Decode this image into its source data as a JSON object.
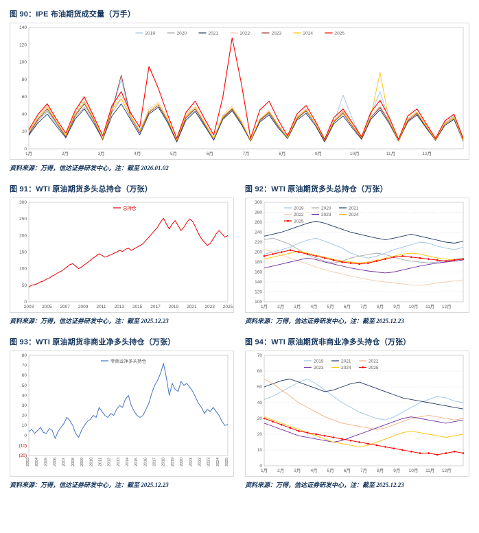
{
  "page": {
    "background": "#FFFFFF",
    "title_color": "#17375E",
    "source_color": "#17375E",
    "frame_color": "#BFBFBF",
    "grid_color": "#D9D9D9",
    "axis_label_color": "#595959",
    "negative_label_color": "#C00000"
  },
  "chart_data": [
    {
      "id": "fig90",
      "type": "line",
      "title": "图 90：IPE 布油期货成交量（万手）",
      "source_note": "资料来源：万得，信达证券研发中心，注：截至 2026.01.02",
      "xlabel": "",
      "ylabel": "",
      "ylim": [
        0,
        140
      ],
      "yticks": [
        0,
        20,
        40,
        60,
        80,
        100,
        120,
        140
      ],
      "x_tick_labels": [
        "1月",
        "2月",
        "3月",
        "4月",
        "5月",
        "6月",
        "7月",
        "8月",
        "9月",
        "10月",
        "11月",
        "12月"
      ],
      "x_tick_mode": "start",
      "rotate_x_labels": false,
      "grid": false,
      "legend": {
        "align": "center",
        "cols": 7,
        "item_width": 46
      },
      "series": [
        {
          "name": "2019",
          "color": "#9DC3E6",
          "values": [
            18,
            35,
            42,
            28,
            15,
            38,
            55,
            33,
            10,
            45,
            80,
            38,
            22,
            40,
            48,
            30,
            8,
            35,
            44,
            26,
            12,
            38,
            46,
            30,
            9,
            33,
            40,
            25,
            14,
            36,
            43,
            28,
            10,
            30,
            62,
            35,
            12,
            40,
            66,
            32,
            9,
            34,
            42,
            26,
            11,
            30,
            38,
            12
          ]
        },
        {
          "name": "2020",
          "color": "#A6A6A6",
          "values": [
            15,
            32,
            44,
            30,
            12,
            36,
            48,
            32,
            10,
            42,
            58,
            36,
            18,
            44,
            52,
            34,
            9,
            38,
            46,
            28,
            11,
            35,
            45,
            29,
            10,
            32,
            41,
            26,
            13,
            34,
            44,
            30,
            9,
            31,
            43,
            27,
            12,
            36,
            47,
            31,
            10,
            33,
            40,
            25,
            10,
            28,
            35,
            10
          ]
        },
        {
          "name": "2021",
          "color": "#203864",
          "values": [
            16,
            30,
            40,
            26,
            13,
            34,
            46,
            30,
            11,
            38,
            52,
            34,
            16,
            40,
            48,
            31,
            8,
            33,
            43,
            27,
            10,
            34,
            44,
            28,
            9,
            31,
            39,
            24,
            12,
            33,
            41,
            27,
            8,
            29,
            38,
            24,
            11,
            34,
            45,
            29,
            9,
            31,
            39,
            24,
            10,
            27,
            34,
            9
          ]
        },
        {
          "name": "2022",
          "color": "#F8CBAD",
          "values": [
            20,
            38,
            50,
            32,
            16,
            42,
            58,
            36,
            12,
            48,
            62,
            40,
            20,
            46,
            54,
            36,
            10,
            40,
            50,
            31,
            13,
            39,
            49,
            32,
            10,
            35,
            44,
            28,
            14,
            37,
            46,
            30,
            10,
            33,
            44,
            28,
            13,
            38,
            50,
            33,
            10,
            35,
            43,
            27,
            11,
            30,
            37,
            11
          ]
        },
        {
          "name": "2023",
          "color": "#943634",
          "values": [
            17,
            34,
            46,
            30,
            14,
            38,
            52,
            34,
            11,
            44,
            85,
            38,
            19,
            42,
            50,
            33,
            9,
            36,
            46,
            29,
            12,
            36,
            46,
            30,
            10,
            33,
            42,
            26,
            13,
            35,
            44,
            29,
            9,
            31,
            41,
            26,
            12,
            36,
            48,
            31,
            9,
            32,
            41,
            25,
            10,
            29,
            36,
            10
          ]
        },
        {
          "name": "2024",
          "color": "#FFC000",
          "values": [
            19,
            36,
            48,
            31,
            15,
            40,
            54,
            35,
            12,
            46,
            58,
            38,
            20,
            44,
            52,
            34,
            10,
            38,
            48,
            30,
            12,
            37,
            47,
            31,
            10,
            34,
            43,
            27,
            13,
            36,
            45,
            29,
            10,
            32,
            42,
            27,
            13,
            37,
            88,
            32,
            10,
            34,
            42,
            26,
            11,
            29,
            36,
            10
          ]
        },
        {
          "name": "2025",
          "color": "#FF0000",
          "width": 1.1,
          "values": [
            22,
            40,
            52,
            34,
            18,
            44,
            60,
            38,
            15,
            50,
            66,
            42,
            25,
            95,
            70,
            40,
            12,
            42,
            55,
            35,
            16,
            60,
            128,
            75,
            12,
            45,
            55,
            33,
            15,
            40,
            50,
            32,
            11,
            36,
            46,
            30,
            14,
            42,
            56,
            36,
            11,
            38,
            46,
            29,
            12,
            32,
            40,
            12
          ]
        }
      ]
    },
    {
      "id": "fig91",
      "type": "line",
      "title": "图 91：WTI 原油期货多头总持仓（万张）",
      "source_note": "资料来源：万得，信达证券研发中心，注：截至 2025.12.23",
      "xlabel": "",
      "ylabel": "",
      "ylim": [
        0,
        300
      ],
      "yticks": [
        0,
        50,
        100,
        150,
        200,
        250,
        300
      ],
      "x_tick_labels": [
        "2003",
        "2005",
        "2007",
        "2009",
        "2011",
        "2013",
        "2015",
        "2017",
        "2019",
        "2021",
        "2023",
        "2025"
      ],
      "x_tick_mode": "span",
      "rotate_x_labels": false,
      "grid": false,
      "legend": {
        "align": "center",
        "cols": 1,
        "item_width": 44
      },
      "series": [
        {
          "name": "总持仓",
          "color": "#E60000",
          "width": 1.0,
          "label_color": "#E60000",
          "values": [
            45,
            50,
            52,
            55,
            60,
            63,
            68,
            72,
            78,
            82,
            88,
            92,
            98,
            105,
            112,
            115,
            108,
            100,
            105,
            112,
            118,
            125,
            132,
            138,
            145,
            140,
            135,
            138,
            142,
            146,
            150,
            155,
            152,
            158,
            162,
            155,
            160,
            165,
            170,
            175,
            185,
            195,
            205,
            215,
            225,
            240,
            252,
            235,
            220,
            235,
            245,
            230,
            215,
            225,
            240,
            250,
            242,
            225,
            205,
            190,
            180,
            170,
            176,
            190,
            205,
            215,
            205,
            195,
            200
          ]
        }
      ]
    },
    {
      "id": "fig92",
      "type": "line",
      "title": "图 92：WTI 原油期货多头总持仓（万张）",
      "source_note": "资料来源：万得，信达证券研发中心，注：截至 2025.12.23",
      "xlabel": "",
      "ylabel": "",
      "ylim": [
        100,
        300
      ],
      "yticks": [
        100,
        120,
        140,
        160,
        180,
        200,
        220,
        240,
        260,
        280,
        300
      ],
      "x_tick_labels": [
        "1月",
        "2月",
        "3月",
        "4月",
        "5月",
        "6月",
        "7月",
        "8月",
        "9月",
        "10月",
        "11月",
        "12月"
      ],
      "x_tick_mode": "start",
      "rotate_x_labels": false,
      "grid": true,
      "legend": {
        "align": "left",
        "indent": 0.1,
        "cols": 3,
        "item_width": 40
      },
      "series": [
        {
          "name": "2019",
          "color": "#9DC3E6",
          "values": [
            196,
            200,
            205,
            210,
            218,
            224,
            228,
            222,
            215,
            208,
            198,
            192,
            188,
            192,
            198,
            205,
            210,
            215,
            220,
            218,
            212,
            208,
            205,
            210
          ]
        },
        {
          "name": "2020",
          "color": "#A6A6A6",
          "values": [
            225,
            228,
            222,
            215,
            205,
            195,
            188,
            182,
            178,
            182,
            188,
            192,
            195,
            198,
            195,
            190,
            185,
            182,
            180,
            178,
            180,
            183,
            186,
            188
          ]
        },
        {
          "name": "2021",
          "color": "#203864",
          "values": [
            232,
            236,
            240,
            246,
            252,
            258,
            262,
            258,
            252,
            246,
            240,
            236,
            232,
            228,
            225,
            228,
            232,
            236,
            232,
            228,
            224,
            220,
            218,
            222
          ]
        },
        {
          "name": "2022",
          "color": "#F8CBAD",
          "values": [
            205,
            200,
            194,
            188,
            182,
            176,
            170,
            165,
            160,
            156,
            152,
            148,
            145,
            142,
            140,
            138,
            136,
            134,
            133,
            135,
            138,
            140,
            142,
            144
          ]
        },
        {
          "name": "2023",
          "color": "#7030A0",
          "values": [
            168,
            172,
            176,
            180,
            184,
            188,
            185,
            180,
            176,
            172,
            168,
            165,
            162,
            160,
            158,
            160,
            164,
            168,
            172,
            175,
            178,
            180,
            182,
            184
          ]
        },
        {
          "name": "2024",
          "color": "#FFC000",
          "values": [
            186,
            190,
            194,
            198,
            202,
            198,
            194,
            190,
            186,
            182,
            180,
            178,
            180,
            184,
            188,
            192,
            196,
            198,
            196,
            192,
            188,
            186,
            184,
            186
          ]
        },
        {
          "name": "2025",
          "color": "#FF0000",
          "width": 1.0,
          "marker": true,
          "values": [
            192,
            196,
            200,
            204,
            200,
            196,
            192,
            188,
            184,
            180,
            178,
            176,
            178,
            182,
            186,
            190,
            192,
            190,
            188,
            186,
            184,
            182,
            184,
            186
          ]
        }
      ]
    },
    {
      "id": "fig93",
      "type": "line",
      "title": "图 93：WTI 原油期货非商业净多头持仓（万张）",
      "source_note": "资料来源：万得，信达证券研发中心，注：截至 2025.12.23",
      "xlabel": "",
      "ylabel": "",
      "ylim": [
        -20,
        80
      ],
      "yticks": [
        -20,
        -10,
        0,
        10,
        20,
        30,
        40,
        50,
        60,
        70,
        80
      ],
      "x_tick_labels": [
        "2003",
        "2004",
        "2005",
        "2006",
        "2007",
        "2008",
        "2009",
        "2010",
        "2011",
        "2012",
        "2013",
        "2014",
        "2015",
        "2016",
        "2017",
        "2018",
        "2019",
        "2020",
        "2021",
        "2022",
        "2023",
        "2024",
        "2025"
      ],
      "x_tick_mode": "span",
      "rotate_x_labels": true,
      "grid": false,
      "legend": {
        "align": "center",
        "cols": 1,
        "item_width": 80
      },
      "series": [
        {
          "name": "非商业净多头持仓",
          "color": "#4472C4",
          "width": 1.0,
          "values": [
            4,
            6,
            2,
            5,
            8,
            3,
            2,
            7,
            5,
            -3,
            4,
            8,
            12,
            18,
            15,
            10,
            2,
            -2,
            5,
            10,
            14,
            16,
            20,
            18,
            28,
            24,
            20,
            18,
            22,
            20,
            26,
            30,
            28,
            36,
            40,
            30,
            24,
            20,
            18,
            20,
            26,
            32,
            42,
            50,
            55,
            62,
            72,
            58,
            40,
            52,
            46,
            44,
            54,
            50,
            52,
            48,
            44,
            38,
            32,
            28,
            22,
            26,
            24,
            28,
            24,
            20,
            14,
            10,
            11
          ]
        }
      ]
    },
    {
      "id": "fig94",
      "type": "line",
      "title": "图 94：WTI 原油期货非商业净多头持仓（万张）",
      "source_note": "资料来源：万得，信达证券研发中心，注：截至 2025.12.23",
      "xlabel": "",
      "ylabel": "",
      "ylim": [
        0,
        70
      ],
      "yticks": [
        0,
        10,
        20,
        30,
        40,
        50,
        60,
        70
      ],
      "x_tick_labels": [
        "1月",
        "2月",
        "3月",
        "4月",
        "5月",
        "6月",
        "7月",
        "8月",
        "9月",
        "10月",
        "11月",
        "12月"
      ],
      "x_tick_mode": "start",
      "rotate_x_labels": false,
      "grid": true,
      "legend": {
        "align": "left",
        "indent": 0.2,
        "cols": 3,
        "item_width": 40
      },
      "series": [
        {
          "name": "2019",
          "color": "#9DC3E6",
          "values": [
            42,
            44,
            47,
            50,
            53,
            55,
            52,
            48,
            44,
            40,
            37,
            34,
            32,
            30,
            29,
            31,
            34,
            37,
            40,
            42,
            44,
            43,
            41,
            40
          ]
        },
        {
          "name": "2021",
          "color": "#203864",
          "values": [
            50,
            52,
            54,
            55,
            53,
            51,
            49,
            47,
            48,
            50,
            52,
            53,
            51,
            49,
            47,
            45,
            43,
            42,
            41,
            40,
            39,
            38,
            37,
            36
          ]
        },
        {
          "name": "2022",
          "color": "#F4B183",
          "values": [
            55,
            52,
            48,
            44,
            40,
            37,
            34,
            31,
            29,
            27,
            26,
            25,
            24,
            23,
            24,
            26,
            28,
            30,
            31,
            32,
            31,
            30,
            29,
            30
          ]
        },
        {
          "name": "2023",
          "color": "#7030A0",
          "values": [
            27,
            25,
            23,
            21,
            19,
            18,
            17,
            16,
            15,
            16,
            18,
            20,
            22,
            24,
            26,
            28,
            30,
            31,
            30,
            29,
            28,
            27,
            28,
            29
          ]
        },
        {
          "name": "2024",
          "color": "#FFC000",
          "values": [
            31,
            29,
            27,
            25,
            23,
            21,
            19,
            17,
            15,
            14,
            13,
            12,
            13,
            15,
            17,
            19,
            21,
            22,
            21,
            20,
            19,
            18,
            19,
            20
          ]
        },
        {
          "name": "2025",
          "color": "#FF0000",
          "width": 1.0,
          "marker": true,
          "values": [
            30,
            28,
            26,
            24,
            22,
            21,
            20,
            19,
            18,
            17,
            16,
            15,
            14,
            13,
            12,
            11,
            10,
            9,
            8,
            8,
            7,
            8,
            9,
            8
          ]
        }
      ]
    }
  ]
}
